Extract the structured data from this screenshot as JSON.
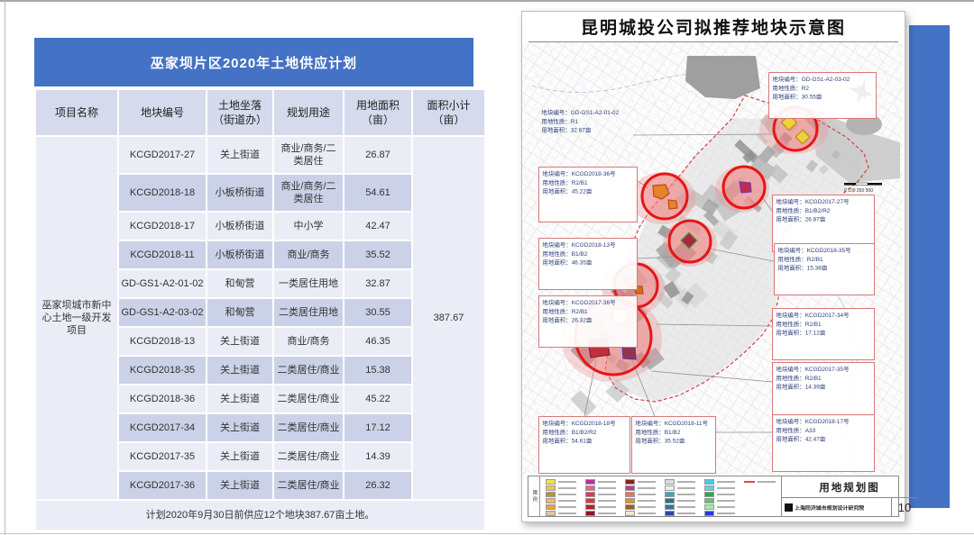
{
  "slide": {
    "colors": {
      "accent": "#4472C4",
      "highlight_circle": "#e81515"
    },
    "table": {
      "title": "巫家坝片区2020年土地供应计划",
      "columns": [
        "项目名称",
        "地块编号",
        "土地坐落\n（街道办）",
        "规划用途",
        "用地面积\n（亩）",
        "面积小计\n（亩）"
      ],
      "project_name": "巫家坝城市新中心土地一级开发项目",
      "subtotal": "387.67",
      "rows": [
        {
          "code": "KCGD2017-27",
          "street": "关上街道",
          "use": "商业/商务/二类居住",
          "area": "26.87"
        },
        {
          "code": "KCGD2018-18",
          "street": "小板桥街道",
          "use": "商业/商务/二类居住",
          "area": "54.61"
        },
        {
          "code": "KCGD2018-17",
          "street": "小板桥街道",
          "use": "中小学",
          "area": "42.47"
        },
        {
          "code": "KCGD2018-11",
          "street": "小板桥街道",
          "use": "商业/商务",
          "area": "35.52"
        },
        {
          "code": "GD-GS1-A2-01-02",
          "street": "和甸营",
          "use": "一类居住用地",
          "area": "32.87"
        },
        {
          "code": "GD-GS1-A2-03-02",
          "street": "和甸营",
          "use": "二类居住用地",
          "area": "30.55"
        },
        {
          "code": "KCGD2018-13",
          "street": "关上街道",
          "use": "商业/商务",
          "area": "46.35"
        },
        {
          "code": "KCGD2018-35",
          "street": "关上街道",
          "use": "二类居住/商业",
          "area": "15.38"
        },
        {
          "code": "KCGD2018-36",
          "street": "关上街道",
          "use": "二类居住/商业",
          "area": "45.22"
        },
        {
          "code": "KCGD2017-34",
          "street": "关上街道",
          "use": "二类居住/商业",
          "area": "17.12"
        },
        {
          "code": "KCGD2017-35",
          "street": "关上街道",
          "use": "二类居住/商业",
          "area": "14.39"
        },
        {
          "code": "KCGD2017-36",
          "street": "关上街道",
          "use": "二类居住/商业",
          "area": "26.32"
        }
      ],
      "footer": "计划2020年9月30日前供应12个地块387.67亩土地。"
    },
    "map": {
      "title": "昆明城投公司拟推荐地块示意图",
      "compass_label": "N",
      "scale_labels": "0 100 250  500",
      "callout_fields": {
        "no": "地块编号",
        "nature": "用地性质",
        "area": "用地面积"
      },
      "callouts": [
        {
          "no": "GD-GS1-A2-01-02",
          "nature": "R1",
          "area": "32.87亩"
        },
        {
          "no": "KCGD2018-36号",
          "nature": "R2/B1",
          "area": "45.22亩"
        },
        {
          "no": "KCGD2018-13号",
          "nature": "B1/B2",
          "area": "46.35亩"
        },
        {
          "no": "KCGD2017-36号",
          "nature": "R2/B1",
          "area": "26.32亩"
        },
        {
          "no": "KCGD2018-18号",
          "nature": "B1/B2/R2",
          "area": "54.61亩"
        },
        {
          "no": "KCGD2018-11号",
          "nature": "B1/B2",
          "area": "35.52亩"
        },
        {
          "no": "GD-GS1-A2-03-02",
          "nature": "R2",
          "area": "30.55亩"
        },
        {
          "no": "KCGD2017-27号",
          "nature": "B1/B2/R2",
          "area": "26.87亩"
        },
        {
          "no": "KCGD2018-35号",
          "nature": "R2/B1",
          "area": "15.38亩"
        },
        {
          "no": "KCGD2017-34号",
          "nature": "R2/B1",
          "area": "17.12亩"
        },
        {
          "no": "KCGD2017-35号",
          "nature": "R2/B1",
          "area": "14.39亩"
        },
        {
          "no": "KCGD2018-17号",
          "nature": "A33",
          "area": "42.47亩"
        }
      ],
      "legend": {
        "label": "图例",
        "swatch_colors": [
          "#f2e24a",
          "#f4c14a",
          "#bb8f3e",
          "#f2b870",
          "#ee9e3e",
          "#d8c9a0",
          "#c428a6",
          "#e8608e",
          "#e03a52",
          "#e23535",
          "#b51f33",
          "#921327",
          "#8c2012",
          "#b93f8e",
          "#ee7060",
          "#e98b2a",
          "#9c5f2a",
          "#efe6cc",
          "#dcdcdc",
          "#ededed",
          "#35aabb",
          "#22788c",
          "#3a6fb0",
          "#2b4ba0",
          "#3fd0e2",
          "#63cdea",
          "#2fa848",
          "#5ec95e",
          "#a0eab0",
          "#2b35ea"
        ],
        "boundary_line_color": "#e04848"
      },
      "title_block": {
        "drawing_title": "用地规划图",
        "institute": "上海同济城市规划设计研究院",
        "page": "10"
      }
    }
  }
}
